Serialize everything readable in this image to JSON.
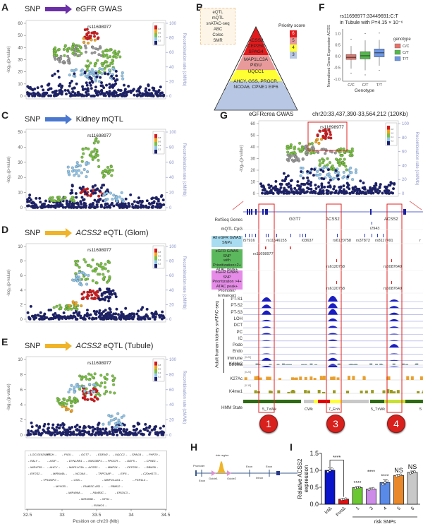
{
  "panels": {
    "A": {
      "letter": "A",
      "snp": "SNP",
      "target": "eGFR GWAS",
      "arrow_color": "#6a2fa8",
      "lead_snp": "rs11698977",
      "yticks": [
        "60",
        "50",
        "40",
        "30",
        "20",
        "10",
        "0"
      ],
      "rticks": [
        "100",
        "80",
        "60",
        "40",
        "20",
        "0"
      ],
      "ylabel": "-log₁₀(p-value)",
      "rlabel": "Recombination rate (cM/Mb)"
    },
    "B": {
      "letter": "B",
      "annotations": [
        "eQTL",
        "mQTL",
        "snATAC-seq",
        "ABC",
        "Coloc",
        "SMR"
      ],
      "legend_title": "Priority score",
      "levels": [
        {
          "score": "6",
          "color": "#e31a1c",
          "genes": "ACSS2\nCEP250\nSPAG4"
        },
        {
          "score": "5",
          "color": "#e89a9a",
          "genes": "MAP1LC3A\nPIGU"
        },
        {
          "score": "4",
          "color": "#ffff33",
          "genes": "UQCC1"
        },
        {
          "score": "3",
          "color": "#b8c8e4",
          "genes": "AHCY, GSS, PROCR,\nNCOA6, CPNE1 EIF6"
        }
      ]
    },
    "C": {
      "letter": "C",
      "snp": "SNP",
      "target": "Kidney mQTL",
      "arrow_color": "#4a78d0",
      "lead_snp": "rs11698977",
      "yticks": [
        "50",
        "40",
        "30",
        "20",
        "10",
        "0"
      ],
      "rticks": [
        "100",
        "80",
        "60",
        "40",
        "20",
        "0"
      ],
      "ylabel": "-log₁₀(p-value)",
      "rlabel": "Recombination rate (cM/Mb)"
    },
    "D": {
      "letter": "D",
      "snp": "SNP",
      "target_gene": "ACSS2",
      "target": " eQTL (Glom)",
      "arrow_color": "#f0b429",
      "lead_snp": "rs11698977",
      "yticks": [
        "10",
        "8",
        "6",
        "4",
        "2",
        "0"
      ],
      "rticks": [
        "100",
        "80",
        "60",
        "40",
        "20",
        "0"
      ],
      "ylabel": "-log₁₀(p-value)",
      "rlabel": "Recombination rate (cM/Mb)"
    },
    "E": {
      "letter": "E",
      "snp": "SNP",
      "target_gene": "ACSS2",
      "target": " eQTL (Tubule)",
      "arrow_color": "#f0b429",
      "lead_snp": "rs11698977",
      "yticks": [
        "10",
        "8",
        "6",
        "4",
        "2",
        "0"
      ],
      "rticks": [
        "100",
        "80",
        "60",
        "40",
        "20",
        "0"
      ],
      "ylabel": "-log₁₀(p-value)",
      "rlabel": "Recombination rate (cM/Mb)",
      "xticks": [
        "32.5",
        "33",
        "33.5",
        "34",
        "34.5"
      ],
      "xlabel": "Position on chr20 (Mb)",
      "genes": [
        [
          "LOC101926888",
          "ITCH",
          "PIGU",
          "GGT7",
          "EDEM2",
          "UQCC1",
          "SPAG4",
          "PHF20"
        ],
        [
          "RALY",
          "ASIP",
          "DYNLRB1",
          "NMG3BP1",
          "PROCR",
          "GDF5",
          "CPNE1"
        ],
        [
          "MIR4755",
          "AHCY",
          "MAP1LC3A",
          "ACSS2",
          "MMP24",
          "CEP250",
          "RBM39"
        ],
        [
          "EIF2S2",
          "MIR644A",
          "NCOA6",
          "TRPC4AP",
          "EIF6",
          "C20orf173"
        ],
        [
          "TP53INP2",
          "GSS",
          "MMP24-AS1",
          "FER1L4"
        ],
        [
          "MYH7B",
          "FAM83C-AS1",
          "RBM12"
        ],
        [
          "MIR499A",
          "FAM83C",
          "ERGIC3"
        ],
        [
          "MIR499B",
          "NFS1"
        ],
        [
          "ROMO1"
        ]
      ]
    },
    "F": {
      "letter": "F",
      "title1": "rs11698977:33449691:C:T",
      "title2": "in Tubule with P=4.15 × 10⁻⁶",
      "ylabel": "Normalized Gene Expression ACSS2",
      "xlabel": "Genotype",
      "yticks": [
        "1.0",
        "0.5",
        "0.0",
        "-0.5",
        "-1.0"
      ],
      "legend_title": "genotype",
      "groups": [
        {
          "name": "C/C",
          "color": "#e8736a",
          "q1": -0.14,
          "median": -0.05,
          "q3": 0.07,
          "lo": -0.55,
          "hi": 0.45
        },
        {
          "name": "C/T",
          "color": "#52b84a",
          "q1": -0.12,
          "median": 0.02,
          "q3": 0.2,
          "lo": -0.62,
          "hi": 0.7
        },
        {
          "name": "T/T",
          "color": "#6a96e8",
          "q1": -0.03,
          "median": 0.15,
          "q3": 0.32,
          "lo": -0.42,
          "hi": 0.72
        }
      ]
    },
    "G": {
      "letter": "G",
      "title": "eGFRcrea GWAS",
      "region": "chr20:33,437,390-33,564,212 (120Kb)",
      "lead_snp": "rs11698977",
      "yticks": [
        "60",
        "50",
        "40",
        "30",
        "20",
        "10",
        "0"
      ],
      "rticks": [
        "100",
        "80",
        "60",
        "40",
        "20",
        "0"
      ],
      "ylabel": "-log₁₀(p-value)",
      "rlabel": "Recombination rate (cM/Mb)",
      "track_labels": {
        "refseq": "RefSeq Genes",
        "mqtl": "mQTL CpG",
        "all_snps": "All eGFR GWAS\nSNPs",
        "prio2": "eGFR GWAS SNP\nwith Prioritization>2+\nATAC peak+\nPromoter/ Enhancer)",
        "prio4": "eGFR GWAS SNP\nPrioritization >4+\nATAC peak+\nPromoter/ Enhancer)",
        "atac_group": "Adult human kidney snATAC-seq",
        "hmm": "HMM State"
      },
      "gene_labels": [
        "GGT7",
        "ACSS2",
        "ACSS2"
      ],
      "mqtl_label": "i2943",
      "all_snp_labels": [
        "i57916",
        "rs11546155",
        "i03637",
        "rs6120758",
        "rs37872",
        "rs8117491",
        "r"
      ],
      "prio2_labels": [
        "rs11698977",
        "rs6120758",
        "rs6087649"
      ],
      "prio4_labels": [
        "rs6120758",
        "rs6087649"
      ],
      "cell_types": [
        "PT-S1",
        "PT-S2",
        "PT-S3",
        "LOH",
        "DCT",
        "PC",
        "IC",
        "Podo",
        "Endo",
        "Immune",
        "Stroma"
      ],
      "histone": [
        {
          "name": "K4Me3",
          "scale": "[0-20]"
        },
        {
          "name": "K27Ac",
          "scale": "[0-20]"
        },
        {
          "name": "K4me1",
          "scale": "[0-15]"
        }
      ],
      "hmm_labels": [
        "5_TxWk",
        "CWk",
        "7_Enh",
        "5_TxWk",
        "5"
      ],
      "regions": [
        "1",
        "3",
        "4"
      ]
    },
    "H": {
      "letter": "H",
      "promoter": "Promoter",
      "exon_left": "Exon",
      "risk_region": "risk region",
      "guide1": "Guide1",
      "guide2": "Guide2",
      "exon1": "Exon",
      "exon2": "Exon",
      "intron": "Intron"
    },
    "I": {
      "letter": "I",
      "ylabel": "Relative ACSS2\nexpression",
      "yticks": [
        "1.5",
        "1.0",
        "0.5",
        "0.0"
      ],
      "group_label": "risk SNPs"
    }
  },
  "chart_data": [
    {
      "type": "bar",
      "title": "",
      "xlabel": "",
      "ylabel": "Relative ACSS2 expression",
      "ylim": [
        0,
        1.5
      ],
      "categories": [
        "IntΔ",
        "PrmΔ",
        "1",
        "3",
        "4",
        "5",
        "6"
      ],
      "values": [
        1.0,
        0.15,
        0.49,
        0.45,
        0.64,
        0.85,
        0.94
      ],
      "errors": [
        0.07,
        0.02,
        0.03,
        0.03,
        0.08,
        0.03,
        0.04
      ],
      "colors": [
        "#0a14c8",
        "#e01010",
        "#6cc832",
        "#cc8ce8",
        "#5a8ae8",
        "#e8882a",
        "#c8c8c8"
      ],
      "significance": [
        "",
        "****",
        "****",
        "****",
        "****",
        "NS",
        "NS"
      ]
    },
    {
      "type": "box",
      "title": "rs11698977:33449691:C:T in Tubule with P=4.15 × 10⁻⁶",
      "xlabel": "Genotype",
      "ylabel": "Normalized Gene Expression ACSS2",
      "ylim": [
        -1.1,
        1.2
      ],
      "categories": [
        "C/C",
        "C/T",
        "T/T"
      ]
    }
  ]
}
